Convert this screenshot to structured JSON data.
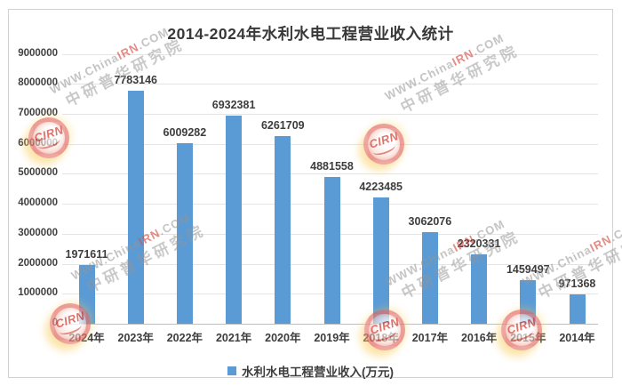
{
  "title": "2014-2024年水利水电工程营业收入统计",
  "chart_data": {
    "type": "bar",
    "title": "2014-2024年水利水电工程营业收入统计",
    "categories": [
      "2024年",
      "2023年",
      "2022年",
      "2021年",
      "2020年",
      "2019年",
      "2018年",
      "2017年",
      "2016年",
      "2015年",
      "2014年"
    ],
    "values": [
      1971611,
      7783146,
      6009282,
      6932381,
      6261709,
      4881558,
      4223485,
      3062076,
      2320331,
      1459497,
      971368
    ],
    "series_name": "水利水电工程营业收入(万元)",
    "xlabel": "",
    "ylabel": "",
    "ylim": [
      0,
      9000000
    ],
    "yticks": [
      0,
      1000000,
      2000000,
      3000000,
      4000000,
      5000000,
      6000000,
      7000000,
      8000000,
      9000000
    ],
    "grid": true,
    "legend_position": "bottom",
    "bar_color": "#5B9BD5",
    "data_labels": true
  },
  "legend": {
    "label": "水利水电工程营业收入(万元)",
    "swatch_color": "#5B9BD5"
  },
  "watermark": {
    "logo_text": "CIRN",
    "line1_prefix": "WWW.China",
    "line1_highlight": "IRN",
    "line1_suffix": ".COM",
    "line2": "中研普华研究院"
  }
}
